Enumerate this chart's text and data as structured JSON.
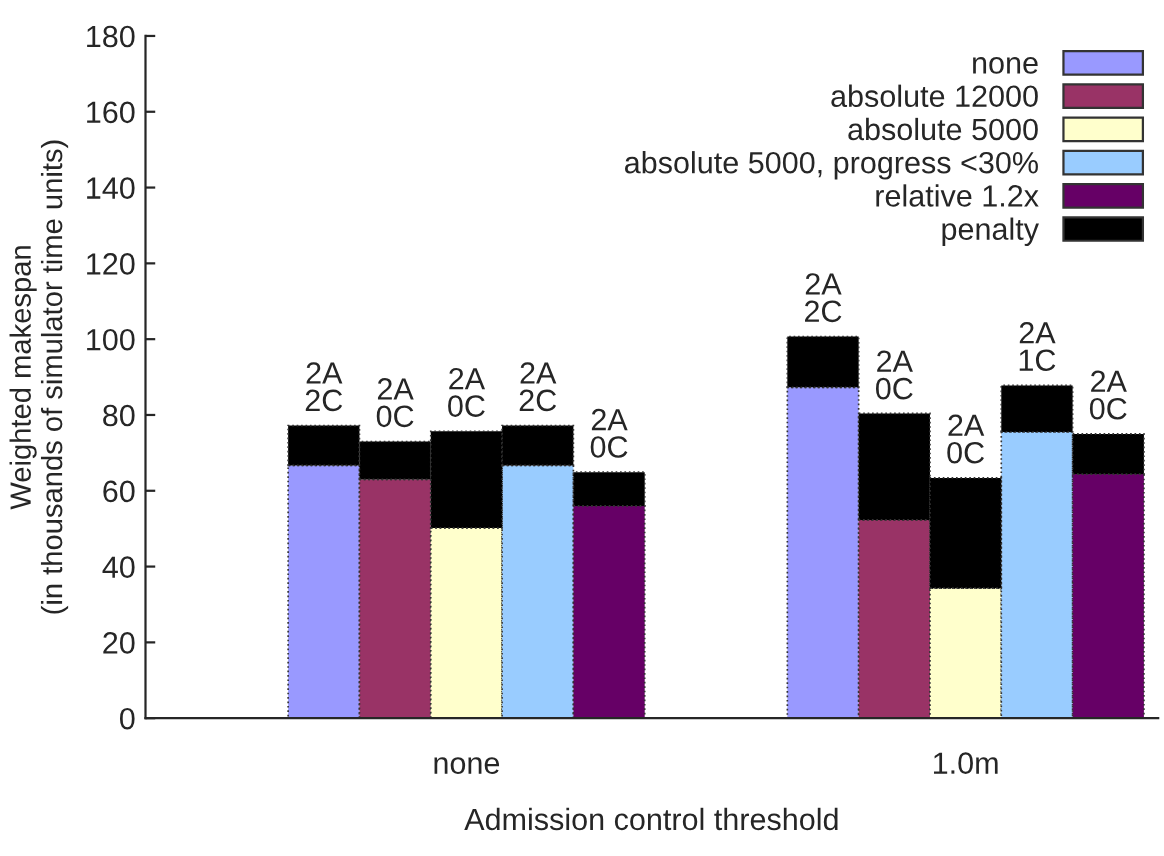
{
  "chart_data": {
    "type": "bar",
    "stacked": true,
    "xlabel": "Admission control threshold",
    "ylabel": "Weighted makespan\n(in thousands of simulator time units)",
    "categories": [
      null,
      null,
      "none",
      null,
      null,
      null,
      null,
      null,
      null,
      "1.0m",
      null,
      null
    ],
    "series": [
      {
        "name": "none",
        "color": "#9999ff",
        "values": [
          66.7,
          null,
          null,
          null,
          null,
          null,
          null,
          87.3,
          null,
          null,
          null,
          null
        ]
      },
      {
        "name": "absolute 12000",
        "color": "#993366",
        "values": [
          null,
          63.0,
          null,
          null,
          null,
          null,
          null,
          null,
          52.3,
          null,
          null,
          null
        ]
      },
      {
        "name": "absolute 5000",
        "color": "#ffffcc",
        "values": [
          null,
          null,
          50.2,
          null,
          null,
          null,
          null,
          null,
          null,
          34.3,
          null,
          null
        ]
      },
      {
        "name": "absolute 5000, progress <30%",
        "color": "#99ccff",
        "values": [
          null,
          null,
          null,
          66.7,
          null,
          null,
          null,
          null,
          null,
          null,
          75.5,
          null
        ]
      },
      {
        "name": "relative 1.2x",
        "color": "#660066",
        "values": [
          null,
          null,
          null,
          null,
          56.0,
          null,
          null,
          null,
          null,
          null,
          null,
          64.4
        ]
      },
      {
        "name": "penalty",
        "color": "#000000",
        "values": [
          10.5,
          10.0,
          25.5,
          10.5,
          8.9,
          null,
          null,
          13.4,
          28.1,
          29.1,
          12.3,
          10.6
        ]
      }
    ],
    "annotations": [
      {
        "text": "2A\n2C",
        "y": 77.2
      },
      {
        "text": "2A\n0C",
        "y": 73.0
      },
      {
        "text": "2A\n0C",
        "y": 75.7
      },
      {
        "text": "2A\n2C",
        "y": 77.2
      },
      {
        "text": "2A\n0C",
        "y": 64.9
      },
      {
        "text": "2A\n2C",
        "y": 100.7
      },
      {
        "text": "2A\n0C",
        "y": 80.3
      },
      {
        "text": "2A\n0C",
        "y": 63.4
      },
      {
        "text": "2A\n1C",
        "y": 87.8
      },
      {
        "text": "2A\n0C",
        "y": 75.0
      }
    ],
    "ylim": [
      0,
      180
    ],
    "yticks": [
      0,
      20,
      40,
      60,
      80,
      100,
      120,
      140,
      160,
      180
    ],
    "grid": false,
    "legend": "top right"
  }
}
